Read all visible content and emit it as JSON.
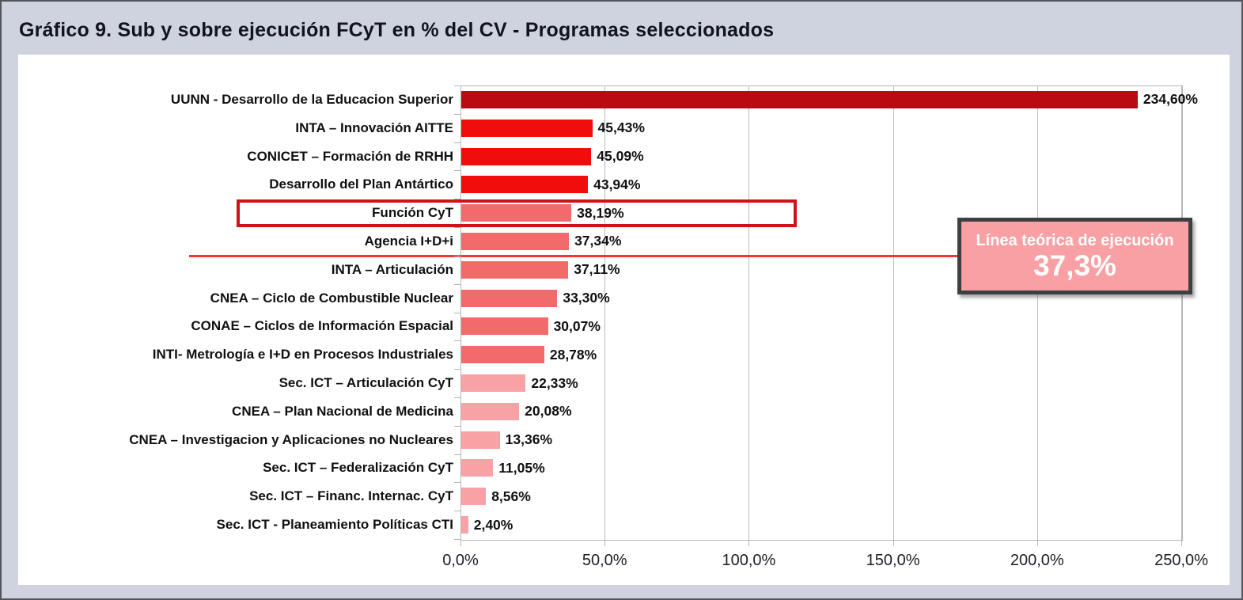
{
  "page": {
    "title": "Gráfico 9. Sub y sobre ejecución FCyT en % del CV - Programas seleccionados"
  },
  "chart_data": {
    "type": "bar",
    "orientation": "horizontal",
    "title": "Gráfico 9. Sub y sobre ejecución FCyT en % del CV - Programas seleccionados",
    "categories": [
      "UUNN - Desarrollo de la Educacion Superior",
      "INTA – Innovación AITTE",
      "CONICET – Formación de RRHH",
      "Desarrollo del Plan Antártico",
      "Función CyT",
      "Agencia I+D+i",
      "INTA – Articulación",
      "CNEA – Ciclo de Combustible Nuclear",
      "CONAE – Ciclos de Información Espacial",
      "INTI- Metrología e I+D en Procesos Industriales",
      "Sec. ICT – Articulación CyT",
      "CNEA – Plan Nacional de Medicina",
      "CNEA – Investigacion y Aplicaciones no Nucleares",
      "Sec. ICT – Federalización CyT",
      "Sec. ICT – Financ. Internac. CyT",
      "Sec. ICT -  Planeamiento Políticas CTI"
    ],
    "values": [
      234.6,
      45.43,
      45.09,
      43.94,
      38.19,
      37.34,
      37.11,
      33.3,
      30.07,
      28.78,
      22.33,
      20.08,
      13.36,
      11.05,
      8.56,
      2.4
    ],
    "value_labels": [
      "234,60%",
      "45,43%",
      "45,09%",
      "43,94%",
      "38,19%",
      "37,34%",
      "37,11%",
      "33,30%",
      "30,07%",
      "28,78%",
      "22,33%",
      "20,08%",
      "13,36%",
      "11,05%",
      "8,56%",
      "2,40%"
    ],
    "bar_colors": [
      "#b70d12",
      "#f20d0d",
      "#f20d0d",
      "#f20d0d",
      "#f26b6b",
      "#f26b6b",
      "#f26b6b",
      "#f26b6b",
      "#f26b6b",
      "#f26b6b",
      "#f8a2a6",
      "#f8a2a6",
      "#f8a2a6",
      "#f8a2a6",
      "#f8a2a6",
      "#f8a2a6"
    ],
    "xlim": [
      0,
      250
    ],
    "x_tick_values": [
      0,
      50,
      100,
      150,
      200,
      250
    ],
    "x_tick_labels": [
      "0,0%",
      "50,0%",
      "100,0%",
      "150,0%",
      "200,0%",
      "250,0%"
    ],
    "grid": true,
    "legend": "none",
    "highlight": {
      "category": "Función CyT",
      "row_index": 4,
      "border_color": "#ce1317"
    },
    "reference_line": {
      "value": 37.3,
      "color": "#f23535"
    },
    "annotation": {
      "title": "Línea teórica de ejecución",
      "value_label": "37,3%",
      "bg": "#f9a0a4",
      "border": "#3e3f41",
      "text_color": "#ffffff"
    }
  },
  "colors": {
    "page_bg": "#cfd3e0",
    "panel_bg": "#ffffff",
    "gridline": "#b9b9b9",
    "label_text": "#101014",
    "title_text": "#13131f"
  }
}
